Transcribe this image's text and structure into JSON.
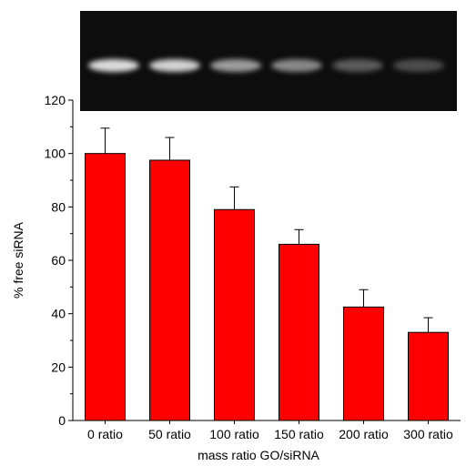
{
  "chart_data": {
    "type": "bar",
    "title": "",
    "xlabel": "mass ratio GO/siRNA",
    "ylabel": "% free siRNA",
    "categories": [
      "0 ratio",
      "50 ratio",
      "100 ratio",
      "150 ratio",
      "200 ratio",
      "300 ratio"
    ],
    "values": [
      100,
      97.5,
      79,
      66,
      42.5,
      33
    ],
    "errors": [
      9.5,
      8.5,
      8.5,
      5.5,
      6.5,
      5.5
    ],
    "ylim": [
      0,
      120
    ],
    "yticks": [
      0,
      20,
      40,
      60,
      80,
      100,
      120
    ],
    "grid": false,
    "legend": "none",
    "bar_color": "#ff0000",
    "bar_edge_color": "#000000",
    "gel_image": {
      "background_color": "#0d0d0d",
      "band_color": "#ffffff",
      "band_intensities": [
        1.0,
        0.95,
        0.7,
        0.6,
        0.38,
        0.3
      ]
    }
  }
}
